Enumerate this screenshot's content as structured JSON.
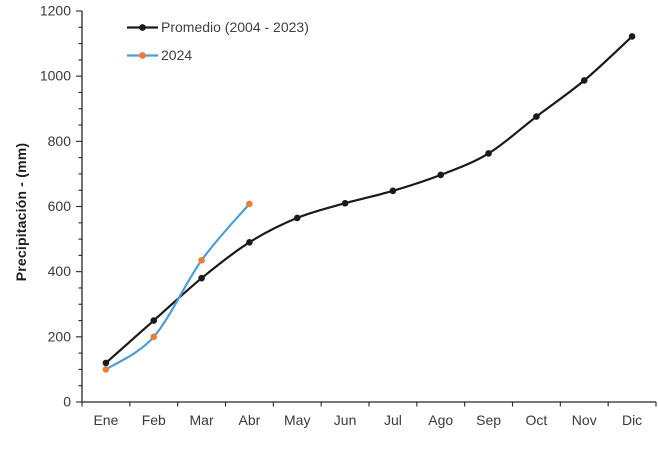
{
  "chart_data": {
    "type": "line",
    "title": "",
    "xlabel": "",
    "ylabel": "Precipitación - (mm)",
    "categories": [
      "Ene",
      "Feb",
      "Mar",
      "Abr",
      "May",
      "Jun",
      "Jul",
      "Ago",
      "Sep",
      "Oct",
      "Nov",
      "Dic"
    ],
    "series": [
      {
        "name": "Promedio (2004 - 2023)",
        "line_color": "#1A1A1A",
        "marker_color": "#1A1A1A",
        "smooth": true,
        "values": [
          120,
          250,
          380,
          490,
          565,
          610,
          648,
          697,
          763,
          876,
          987,
          1122
        ]
      },
      {
        "name": "2024",
        "line_color": "#4A9ED8",
        "marker_color": "#ED7D31",
        "smooth": true,
        "values": [
          100,
          200,
          435,
          608
        ]
      }
    ],
    "ylim": [
      0,
      1200
    ],
    "ytick_major": 200,
    "ytick_minor": 50,
    "grid": false,
    "legend_position": "top-left-inside",
    "axis_color": "#262626",
    "tick_label_color": "#3A3A3A"
  }
}
